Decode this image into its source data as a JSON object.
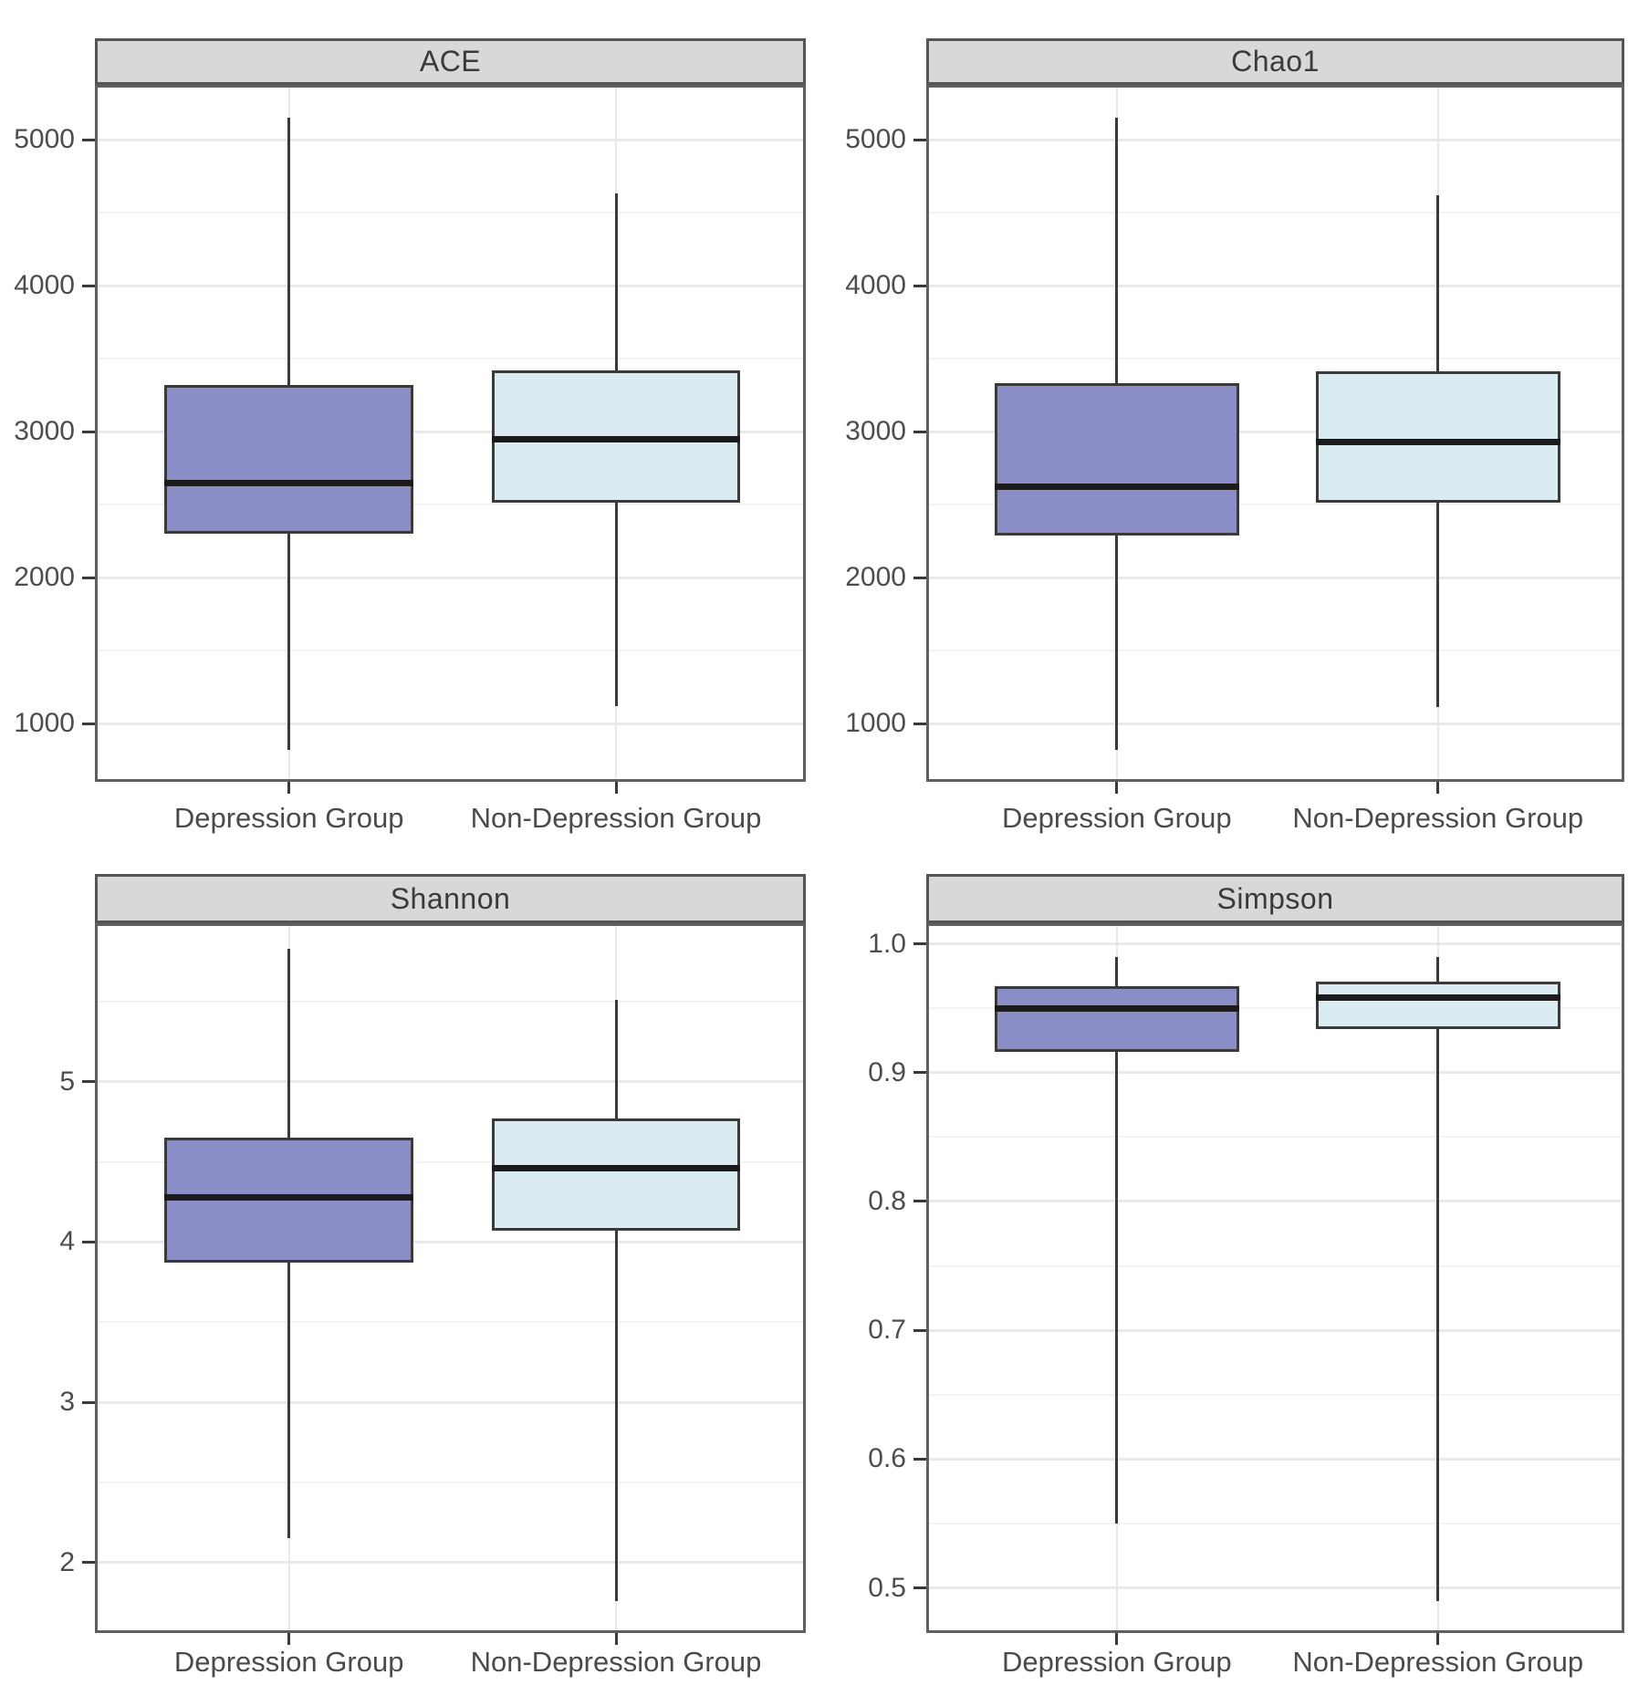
{
  "figure_name": "Alpha diversity boxplots",
  "groups": [
    "Depression Group",
    "Non-Depression Group"
  ],
  "colors": {
    "depression_fill": "#8a8dc6",
    "non_depression_fill": "#daecf2",
    "box_border": "#3a3a3a",
    "median": "#1b1b1b",
    "strip_bg": "#d8d8d8",
    "strip_border": "#555555",
    "panel_border": "#5f5f5f",
    "grid_major": "#e9e9e9",
    "grid_minor": "#f3f3f3",
    "tick": "#3a3a3a"
  },
  "chart_data": [
    {
      "type": "boxplot",
      "title": "ACE",
      "ylim": [
        600,
        5375
      ],
      "yticks": [
        5000,
        4000,
        3000,
        2000,
        1000
      ],
      "yticklabels": [
        "5000",
        "4000",
        "3000",
        "2000",
        "1000"
      ],
      "yminor": [
        4500,
        3500,
        2500,
        1500
      ],
      "categories": [
        "Depression Group",
        "Non-Depression Group"
      ],
      "series": [
        {
          "name": "Depression Group",
          "min": 820,
          "q1": 2300,
          "median": 2650,
          "q3": 3320,
          "max": 5150,
          "fill": "#8a8dc6"
        },
        {
          "name": "Non-Depression Group",
          "min": 1120,
          "q1": 2510,
          "median": 2950,
          "q3": 3420,
          "max": 4630,
          "fill": "#daecf2"
        }
      ]
    },
    {
      "type": "boxplot",
      "title": "Chao1",
      "ylim": [
        600,
        5375
      ],
      "yticks": [
        5000,
        4000,
        3000,
        2000,
        1000
      ],
      "yticklabels": [
        "5000",
        "4000",
        "3000",
        "2000",
        "1000"
      ],
      "yminor": [
        4500,
        3500,
        2500,
        1500
      ],
      "categories": [
        "Depression Group",
        "Non-Depression Group"
      ],
      "series": [
        {
          "name": "Depression Group",
          "min": 820,
          "q1": 2290,
          "median": 2620,
          "q3": 3330,
          "max": 5150,
          "fill": "#8a8dc6"
        },
        {
          "name": "Non-Depression Group",
          "min": 1110,
          "q1": 2510,
          "median": 2930,
          "q3": 3410,
          "max": 4620,
          "fill": "#daecf2"
        }
      ]
    },
    {
      "type": "boxplot",
      "title": "Shannon",
      "ylim": [
        1.56,
        5.99
      ],
      "yticks": [
        5,
        4,
        3,
        2
      ],
      "yticklabels": [
        "5",
        "4",
        "3",
        "2"
      ],
      "yminor": [
        5.5,
        4.5,
        3.5,
        2.5
      ],
      "categories": [
        "Depression Group",
        "Non-Depression Group"
      ],
      "series": [
        {
          "name": "Depression Group",
          "min": 2.15,
          "q1": 3.87,
          "median": 4.28,
          "q3": 4.65,
          "max": 5.83,
          "fill": "#8a8dc6"
        },
        {
          "name": "Non-Depression Group",
          "min": 1.76,
          "q1": 4.07,
          "median": 4.46,
          "q3": 4.77,
          "max": 5.51,
          "fill": "#daecf2"
        }
      ]
    },
    {
      "type": "boxplot",
      "title": "Simpson",
      "ylim": [
        0.465,
        1.016
      ],
      "yticks": [
        1.0,
        0.9,
        0.8,
        0.7,
        0.6,
        0.5
      ],
      "yticklabels": [
        "1.0",
        "0.9",
        "0.8",
        "0.7",
        "0.6",
        "0.5"
      ],
      "yminor": [
        0.95,
        0.85,
        0.75,
        0.65,
        0.55
      ],
      "categories": [
        "Depression Group",
        "Non-Depression Group"
      ],
      "series": [
        {
          "name": "Depression Group",
          "min": 0.55,
          "q1": 0.916,
          "median": 0.95,
          "q3": 0.967,
          "max": 0.99,
          "fill": "#8a8dc6"
        },
        {
          "name": "Non-Depression Group",
          "min": 0.49,
          "q1": 0.934,
          "median": 0.958,
          "q3": 0.971,
          "max": 0.99,
          "fill": "#daecf2"
        }
      ]
    }
  ]
}
